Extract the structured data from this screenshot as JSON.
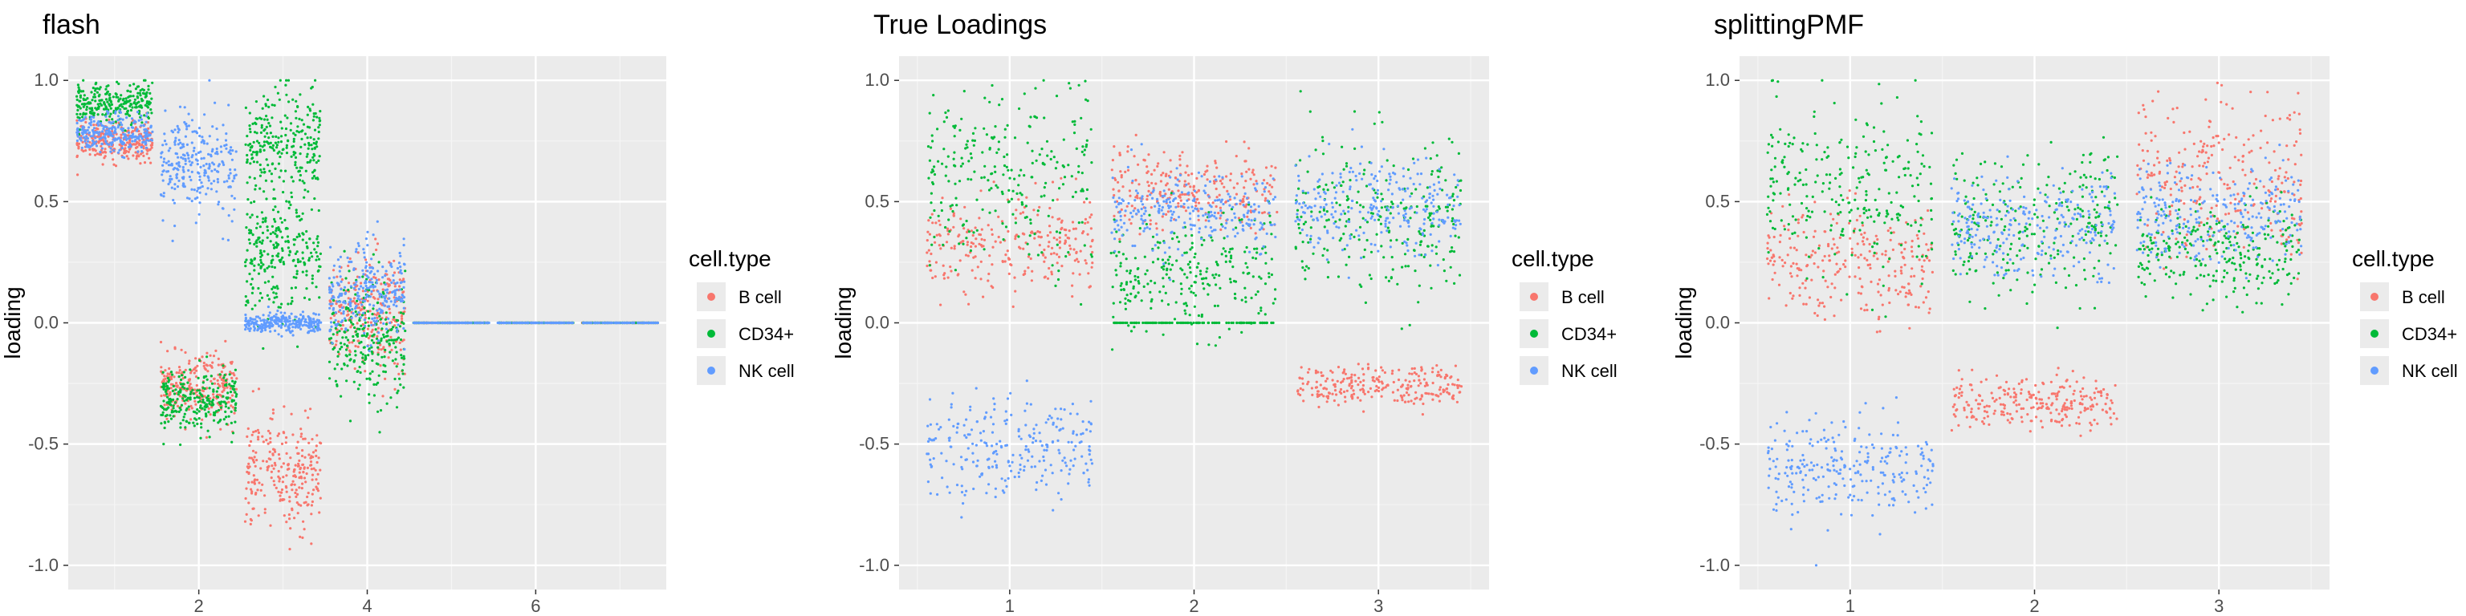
{
  "chart_data": [
    {
      "type": "scatter",
      "title": "flash",
      "xlabel": "",
      "ylabel": "loading",
      "xlim": [
        0.45,
        7.55
      ],
      "ylim": [
        -1.1,
        1.1
      ],
      "x_ticks": [
        2,
        4,
        6
      ],
      "x_tick_labels": [
        "2",
        "4",
        "6"
      ],
      "y_ticks": [
        -1.0,
        -0.5,
        0.0,
        0.5,
        1.0
      ],
      "y_tick_labels": [
        "-1.0",
        "-0.5",
        "0.0",
        "0.5",
        "1.0"
      ],
      "jitter_width": 0.45,
      "legend": {
        "title": "cell.type",
        "position": "right"
      },
      "series": [
        {
          "name": "B cell",
          "color": "#F8766D",
          "clusters": [
            [
              1,
              0.75,
              0.04
            ],
            [
              2,
              -0.27,
              0.07
            ],
            [
              3,
              -0.62,
              0.11
            ],
            [
              4,
              0.04,
              0.12
            ],
            [
              5,
              0.0,
              0.0
            ],
            [
              6,
              0.0,
              0.0
            ],
            [
              7,
              0.0,
              0.0
            ]
          ]
        },
        {
          "name": "CD34+",
          "color": "#00BA38",
          "clusters": [
            [
              1,
              0.91,
              0.04
            ],
            [
              2,
              -0.33,
              0.07
            ],
            [
              3,
              0.72,
              0.12
            ],
            [
              3,
              0.3,
              0.12
            ],
            [
              4,
              -0.06,
              0.13
            ],
            [
              5,
              0.0,
              0.0
            ],
            [
              6,
              0.0,
              0.0
            ],
            [
              7,
              0.0,
              0.0
            ]
          ]
        },
        {
          "name": "NK cell",
          "color": "#619CFF",
          "clusters": [
            [
              1,
              0.78,
              0.04
            ],
            [
              2,
              0.65,
              0.1
            ],
            [
              3,
              0.0,
              0.02
            ],
            [
              4,
              0.12,
              0.1
            ],
            [
              5,
              0.0,
              0.0
            ],
            [
              6,
              0.0,
              0.0
            ],
            [
              7,
              0.0,
              0.0
            ]
          ]
        }
      ]
    },
    {
      "type": "scatter",
      "title": "True Loadings",
      "xlabel": "",
      "ylabel": "loading",
      "xlim": [
        0.4,
        3.6
      ],
      "ylim": [
        -1.1,
        1.1
      ],
      "x_ticks": [
        1,
        2,
        3
      ],
      "x_tick_labels": [
        "1",
        "2",
        "3"
      ],
      "y_ticks": [
        -1.0,
        -0.5,
        0.0,
        0.5,
        1.0
      ],
      "y_tick_labels": [
        "-1.0",
        "-0.5",
        "0.0",
        "0.5",
        "1.0"
      ],
      "jitter_width": 0.45,
      "legend": {
        "title": "cell.type",
        "position": "right"
      },
      "series": [
        {
          "name": "B cell",
          "color": "#F8766D",
          "clusters": [
            [
              1,
              0.32,
              0.1
            ],
            [
              2,
              0.55,
              0.08
            ],
            [
              3,
              -0.26,
              0.04
            ]
          ]
        },
        {
          "name": "CD34+",
          "color": "#00BA38",
          "clusters": [
            [
              1,
              0.6,
              0.18
            ],
            [
              2,
              0.2,
              0.12
            ],
            [
              2,
              0.0,
              0.0
            ],
            [
              3,
              0.45,
              0.17
            ]
          ]
        },
        {
          "name": "NK cell",
          "color": "#619CFF",
          "clusters": [
            [
              1,
              -0.52,
              0.1
            ],
            [
              2,
              0.45,
              0.08
            ],
            [
              3,
              0.48,
              0.1
            ]
          ]
        }
      ]
    },
    {
      "type": "scatter",
      "title": "splittingPMF",
      "xlabel": "",
      "ylabel": "loading",
      "xlim": [
        0.4,
        3.6
      ],
      "ylim": [
        -1.1,
        1.1
      ],
      "x_ticks": [
        1,
        2,
        3
      ],
      "x_tick_labels": [
        "1",
        "2",
        "3"
      ],
      "y_ticks": [
        -1.0,
        -0.5,
        0.0,
        0.5,
        1.0
      ],
      "y_tick_labels": [
        "-1.0",
        "-0.5",
        "0.0",
        "0.5",
        "1.0"
      ],
      "jitter_width": 0.45,
      "legend": {
        "title": "cell.type",
        "position": "right"
      },
      "series": [
        {
          "name": "B cell",
          "color": "#F8766D",
          "clusters": [
            [
              1,
              0.25,
              0.12
            ],
            [
              2,
              -0.33,
              0.05
            ],
            [
              3,
              0.6,
              0.15
            ]
          ]
        },
        {
          "name": "CD34+",
          "color": "#00BA38",
          "clusters": [
            [
              1,
              0.55,
              0.18
            ],
            [
              2,
              0.4,
              0.15
            ],
            [
              3,
              0.3,
              0.1
            ]
          ]
        },
        {
          "name": "NK cell",
          "color": "#619CFF",
          "clusters": [
            [
              1,
              -0.6,
              0.1
            ],
            [
              2,
              0.4,
              0.1
            ],
            [
              3,
              0.45,
              0.1
            ]
          ]
        }
      ]
    }
  ]
}
